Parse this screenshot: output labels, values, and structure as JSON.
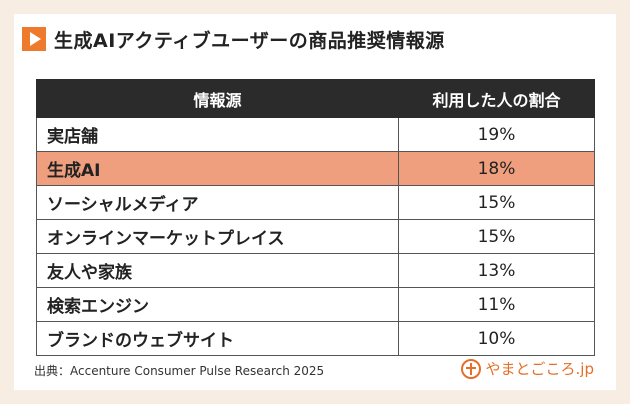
{
  "title": "生成AIアクティブユーザーの商品推奨情報源",
  "source": "出典：Accenture Consumer Pulse Research 2025",
  "logo_text": "やまとごころ.jp",
  "colors": {
    "accent": "#ee7a2d",
    "header_bg": "#2b2b2b",
    "highlight": "#ef9f7e",
    "background": "#f7ede2"
  },
  "chart_data": {
    "type": "table",
    "title": "生成AIアクティブユーザーの商品推奨情報源",
    "columns": [
      "情報源",
      "利用した人の割合"
    ],
    "rows": [
      {
        "source": "実店舗",
        "share": "19%",
        "highlight": false
      },
      {
        "source": "生成AI",
        "share": "18%",
        "highlight": true
      },
      {
        "source": "ソーシャルメディア",
        "share": "15%",
        "highlight": false
      },
      {
        "source": "オンラインマーケットプレイス",
        "share": "15%",
        "highlight": false
      },
      {
        "source": "友人や家族",
        "share": "13%",
        "highlight": false
      },
      {
        "source": "検索エンジン",
        "share": "11%",
        "highlight": false
      },
      {
        "source": "ブランドのウェブサイト",
        "share": "10%",
        "highlight": false
      }
    ]
  }
}
